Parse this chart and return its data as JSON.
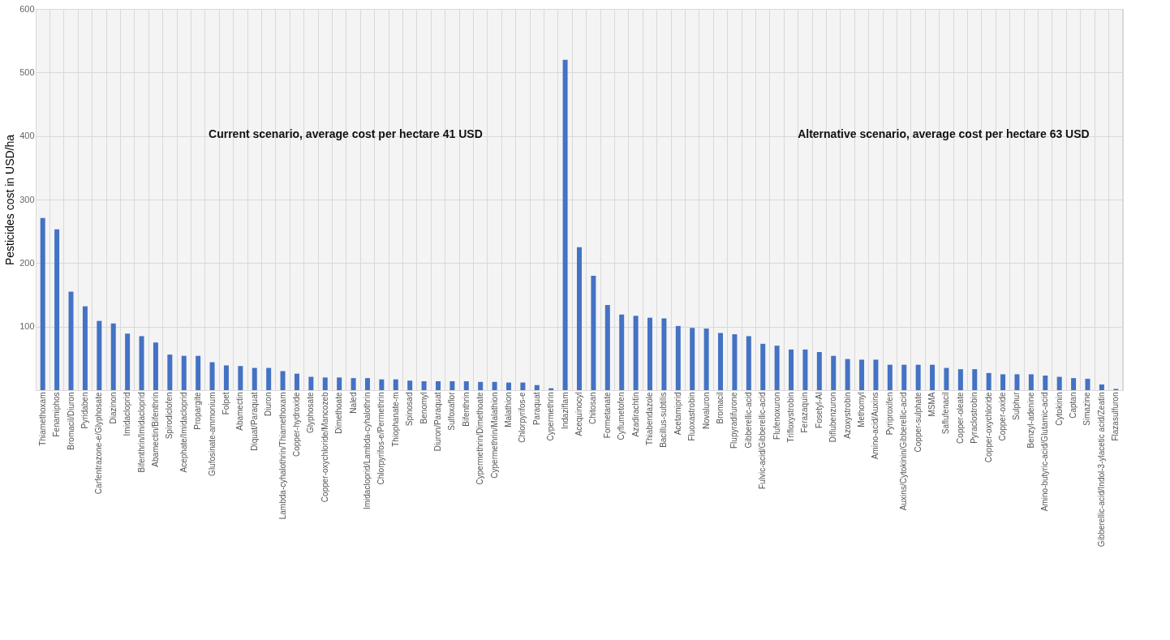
{
  "chart_data": {
    "type": "bar",
    "ylabel": "Pesticides cost in USD/ha",
    "categories": [
      "Thiamethoxam",
      "Fenamiphos",
      "Bromacil/Diuron",
      "Pyridaben",
      "Carfentrazone-e/Glyphosate",
      "Diazinon",
      "Imidacloprid",
      "Bifenthrin/Imidacloprid",
      "Abamectin/Bifenthrin",
      "Spirodiclofen",
      "Acephate/Imidacloprid",
      "Propargite",
      "Glufosinate-ammonium",
      "Folpet",
      "Abamectin",
      "Diquat/Paraquat",
      "Diuron",
      "Lambda-cyhalothrin/Thiamethoxam",
      "Copper-hydroxide",
      "Glyphosate",
      "Copper-oxychloride/Mancozeb",
      "Dimethoate",
      "Naled",
      "Imidacloprid/Lambda-cyhalothrin",
      "Chlorpyrifos-e/Permethrin",
      "Thiophanate-m",
      "Spinosad",
      "Benomyl",
      "Diuron/Paraquat",
      "Sulfoxaflor",
      "Bifenthrin",
      "Cypermethrin/Dimethoate",
      "Cypermethrin/Malathion",
      "Malathion",
      "Chlorpyrifos-e",
      "Paraquat",
      "Cypermethrin",
      "Indaziflam",
      "Acequinocyl",
      "Chitosan",
      "Formetanate",
      "Cyflumetofen",
      "Azadirachtin",
      "Thiabendazole",
      "Bacillus-subtilis",
      "Acetamiprid",
      "Fluoxastrobin",
      "Novaluron",
      "Bromacil",
      "Flupyradifurone",
      "Gibberellic-acid",
      "Fulvic-acid/Gibberellic-acid",
      "Flufenoxuron",
      "Trifloxystrobin",
      "Ferazaquin",
      "Fosetyl-Al",
      "Diflubenzuron",
      "Azoxystrobin",
      "Methomyl",
      "Amino-acid/Auxins",
      "Pyriproxifen",
      "Auxins/Cytokinin/Gibberellic-acid",
      "Copper-sulphate",
      "MSMA",
      "Saflufenacil",
      "Copper-oleate",
      "Pyraclostrobin",
      "Copper-oxychloride",
      "Copper-oxide",
      "Sulphur",
      "Benzyl-adenine",
      "Amino-butyric-acid/Glutamic-acid",
      "Cytokinin",
      "Captan",
      "Simazine",
      "Gibberellic-acid/Indol-3-ylacetic acid/Zeatin",
      "Flazasulfuron"
    ],
    "values": [
      271,
      253,
      155,
      132,
      109,
      105,
      89,
      85,
      75,
      56,
      54,
      54,
      44,
      39,
      38,
      35,
      35,
      30,
      26,
      21,
      20,
      20,
      19,
      19,
      17,
      17,
      15,
      14,
      14,
      14,
      14,
      13,
      13,
      12,
      12,
      8,
      3,
      520,
      225,
      180,
      134,
      119,
      117,
      114,
      113,
      101,
      98,
      97,
      90,
      88,
      85,
      73,
      70,
      64,
      64,
      60,
      54,
      49,
      48,
      48,
      40,
      40,
      40,
      40,
      35,
      33,
      33,
      27,
      25,
      25,
      25,
      23,
      21,
      19,
      18,
      9,
      2
    ],
    "color": "#4472c4",
    "ylim": [
      0,
      600
    ],
    "yticks": [
      {
        "value": 0,
        "label": null
      },
      100,
      200,
      300,
      400,
      500,
      600
    ],
    "grid": true,
    "annotations": [
      "Current scenario, average cost per hectare 41 USD",
      "Alternative scenario, average cost per hectare 63 USD"
    ]
  }
}
